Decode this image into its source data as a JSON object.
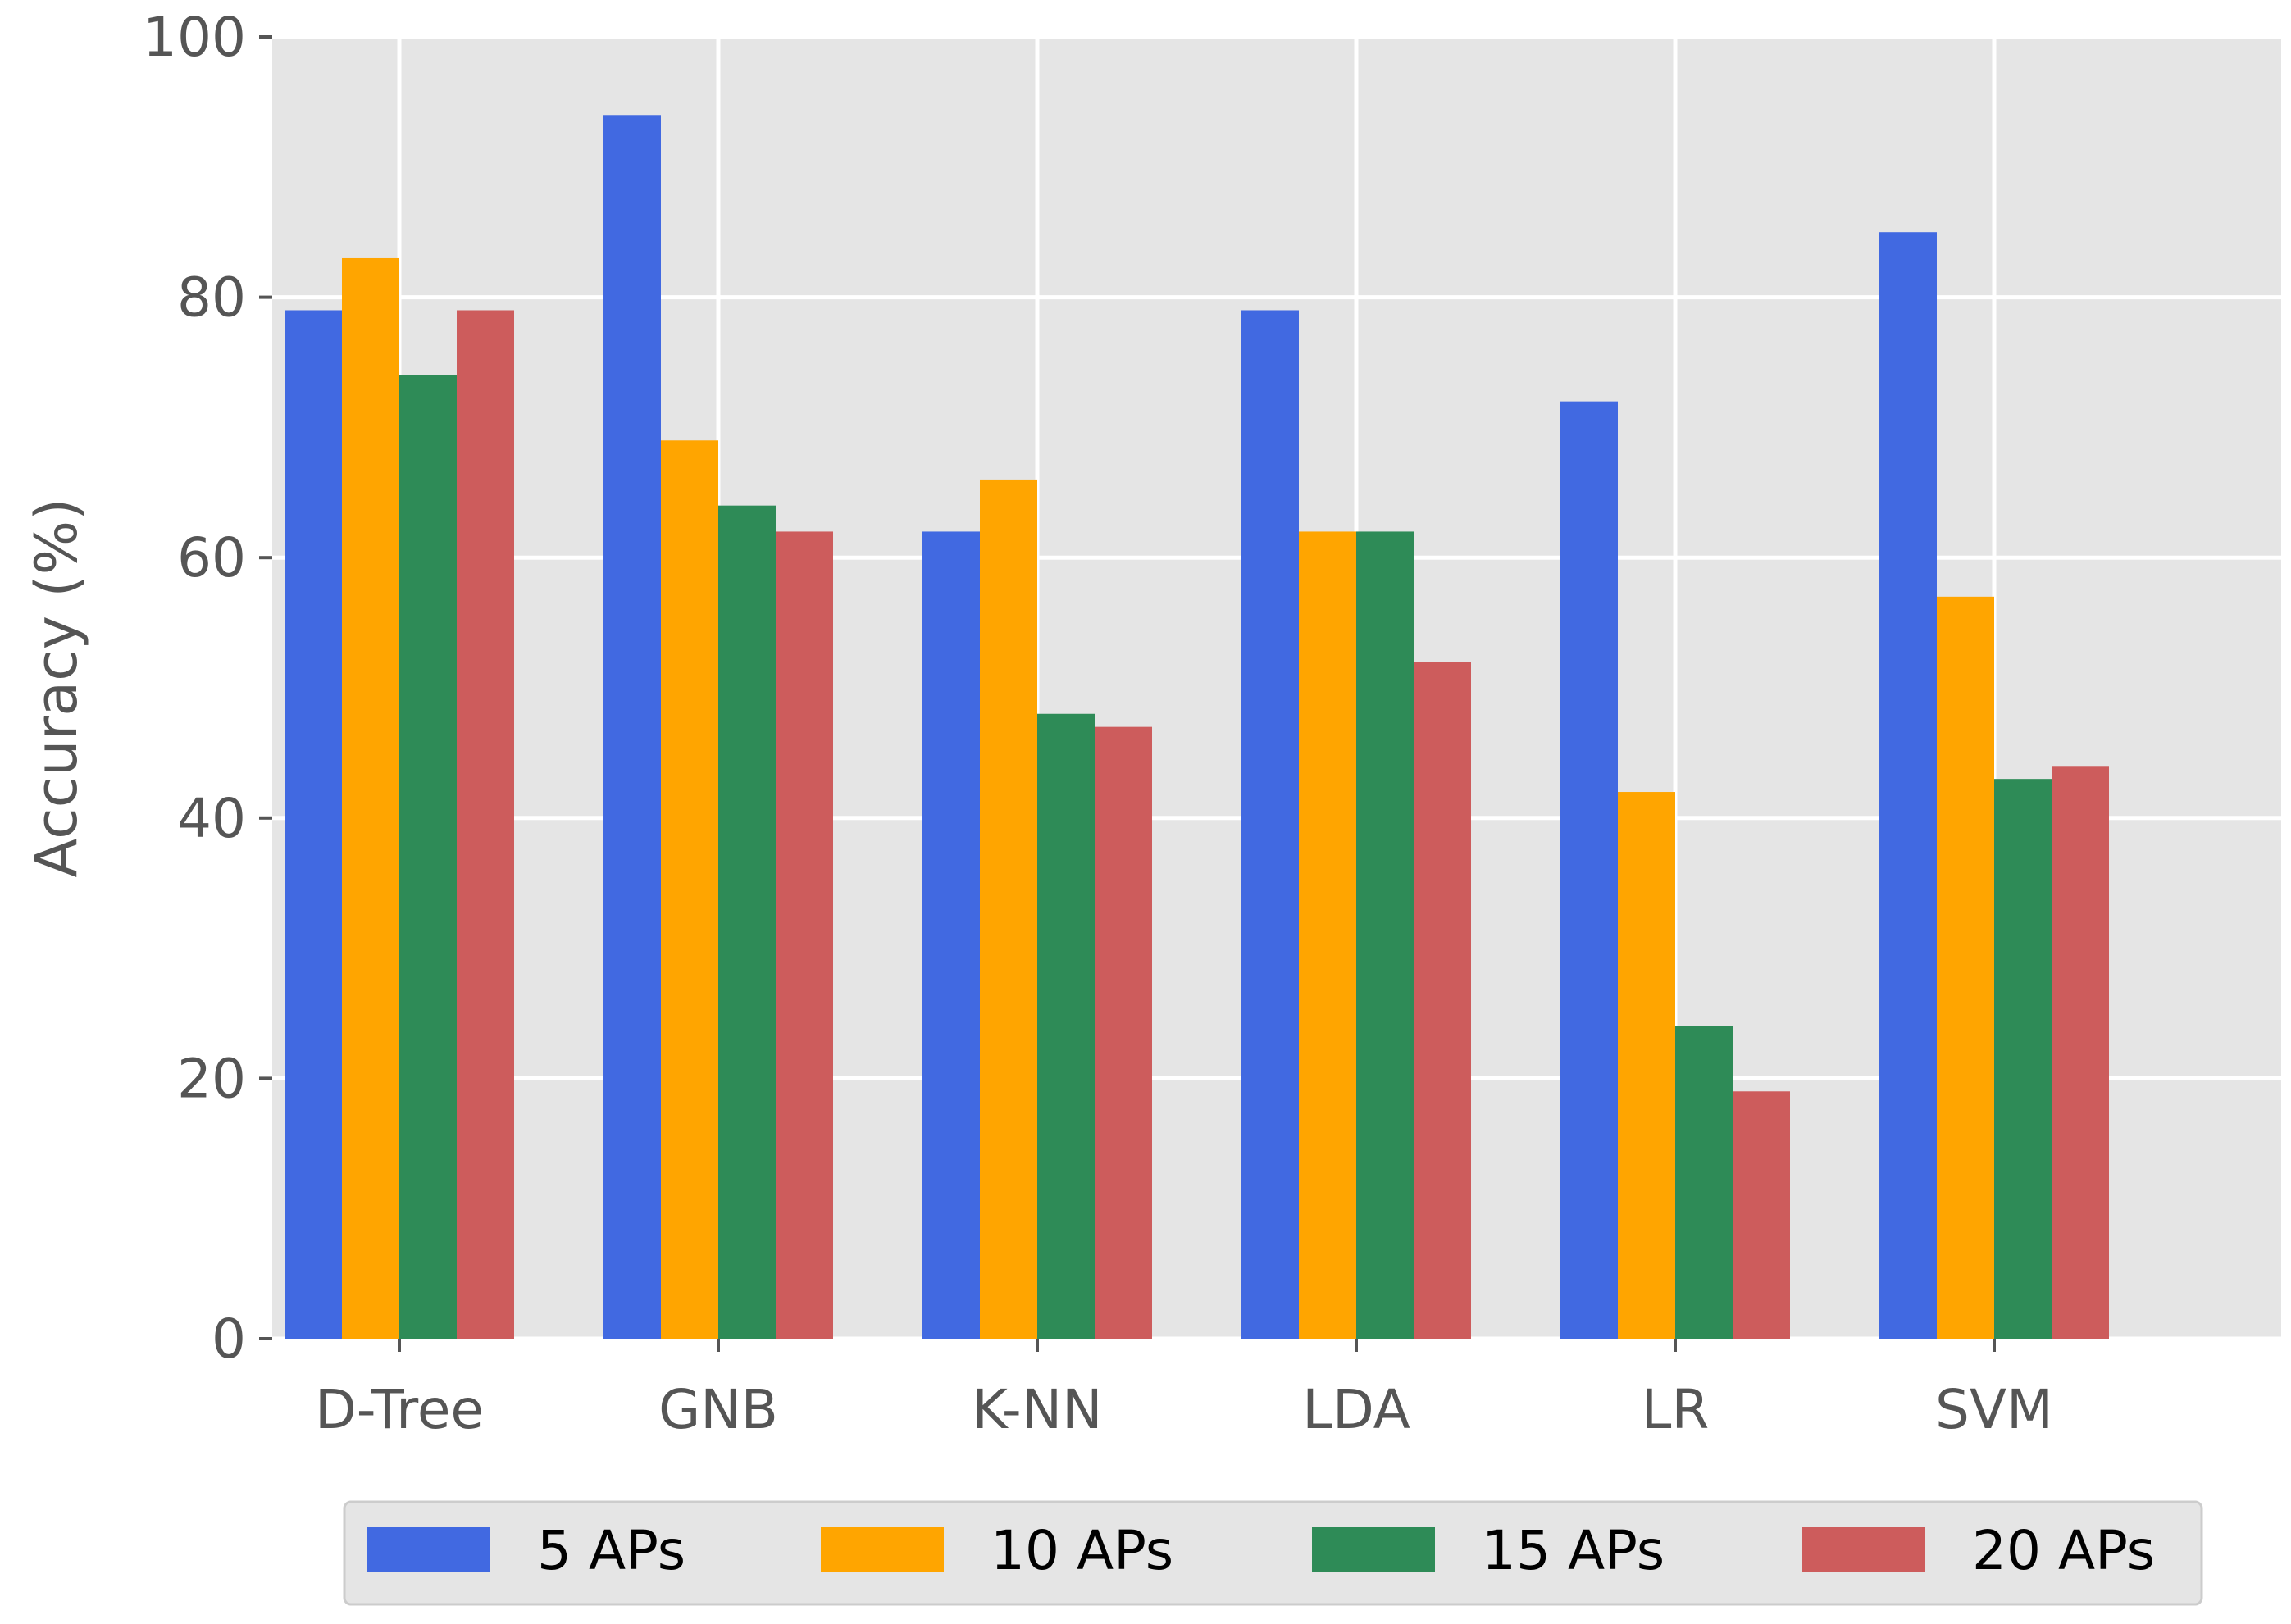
{
  "chart_data": {
    "type": "bar",
    "title": "",
    "xlabel": "",
    "ylabel": "Accuracy (%)",
    "ylim": [
      0,
      100
    ],
    "yticks": [
      "0",
      "20",
      "40",
      "60",
      "80",
      "100"
    ],
    "grid": true,
    "legend_position": "bottom",
    "categories": [
      "D-Tree",
      "GNB",
      "K-NN",
      "LDA",
      "LR",
      "SVM"
    ],
    "series": [
      {
        "name": "5 APs",
        "color": "#4169e1",
        "values": [
          79,
          94,
          62,
          79,
          72,
          85
        ]
      },
      {
        "name": "10 APs",
        "color": "#ffa500",
        "values": [
          83,
          69,
          66,
          62,
          42,
          57
        ]
      },
      {
        "name": "15 APs",
        "color": "#2e8b57",
        "values": [
          74,
          64,
          48,
          62,
          24,
          43
        ]
      },
      {
        "name": "20 APs",
        "color": "#cd5c5c",
        "values": [
          79,
          62,
          47,
          52,
          19,
          44
        ]
      }
    ]
  }
}
